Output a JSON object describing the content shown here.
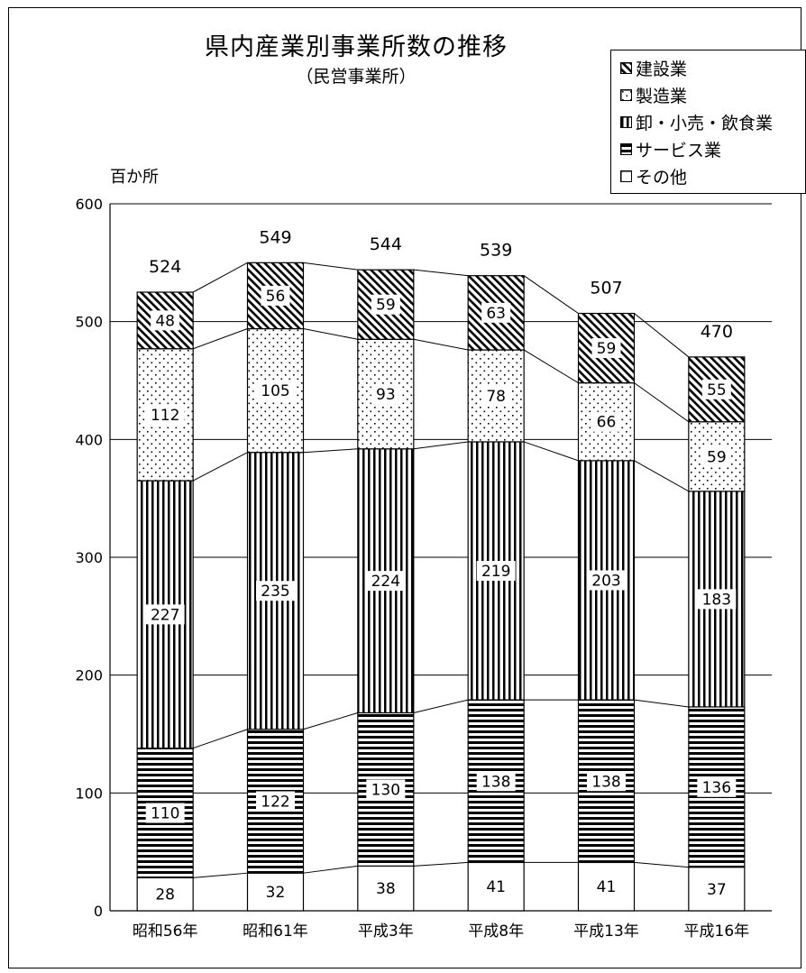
{
  "chart_data": {
    "type": "bar",
    "stacked": true,
    "title": "県内産業別事業所数の推移",
    "subtitle": "（民営事業所）",
    "ylabel": "百か所",
    "ylim": [
      0,
      600
    ],
    "yticks": [
      0,
      100,
      200,
      300,
      400,
      500,
      600
    ],
    "grid": true,
    "legend_position": "top-right",
    "categories": [
      "昭和56年",
      "昭和61年",
      "平成3年",
      "平成8年",
      "平成13年",
      "平成16年"
    ],
    "series": [
      {
        "name": "その他",
        "values": [
          28,
          32,
          38,
          41,
          41,
          37
        ],
        "pattern": "plain"
      },
      {
        "name": "サービス業",
        "values": [
          110,
          122,
          130,
          138,
          138,
          136
        ],
        "pattern": "horizontal-lines"
      },
      {
        "name": "卸・小売・飲食業",
        "values": [
          227,
          235,
          224,
          219,
          203,
          183
        ],
        "pattern": "vertical-lines"
      },
      {
        "name": "製造業",
        "values": [
          112,
          105,
          93,
          78,
          66,
          59
        ],
        "pattern": "dots"
      },
      {
        "name": "建設業",
        "values": [
          48,
          56,
          59,
          63,
          59,
          55
        ],
        "pattern": "diagonal-hatch"
      }
    ],
    "totals": [
      524,
      549,
      544,
      539,
      507,
      470
    ]
  },
  "legend_items": [
    {
      "label": "建設業",
      "pattern": "diagonal-hatch"
    },
    {
      "label": "製造業",
      "pattern": "dots"
    },
    {
      "label": "卸・小売・飲食業",
      "pattern": "vertical-lines"
    },
    {
      "label": "サービス業",
      "pattern": "horizontal-lines"
    },
    {
      "label": "その他",
      "pattern": "plain"
    }
  ]
}
